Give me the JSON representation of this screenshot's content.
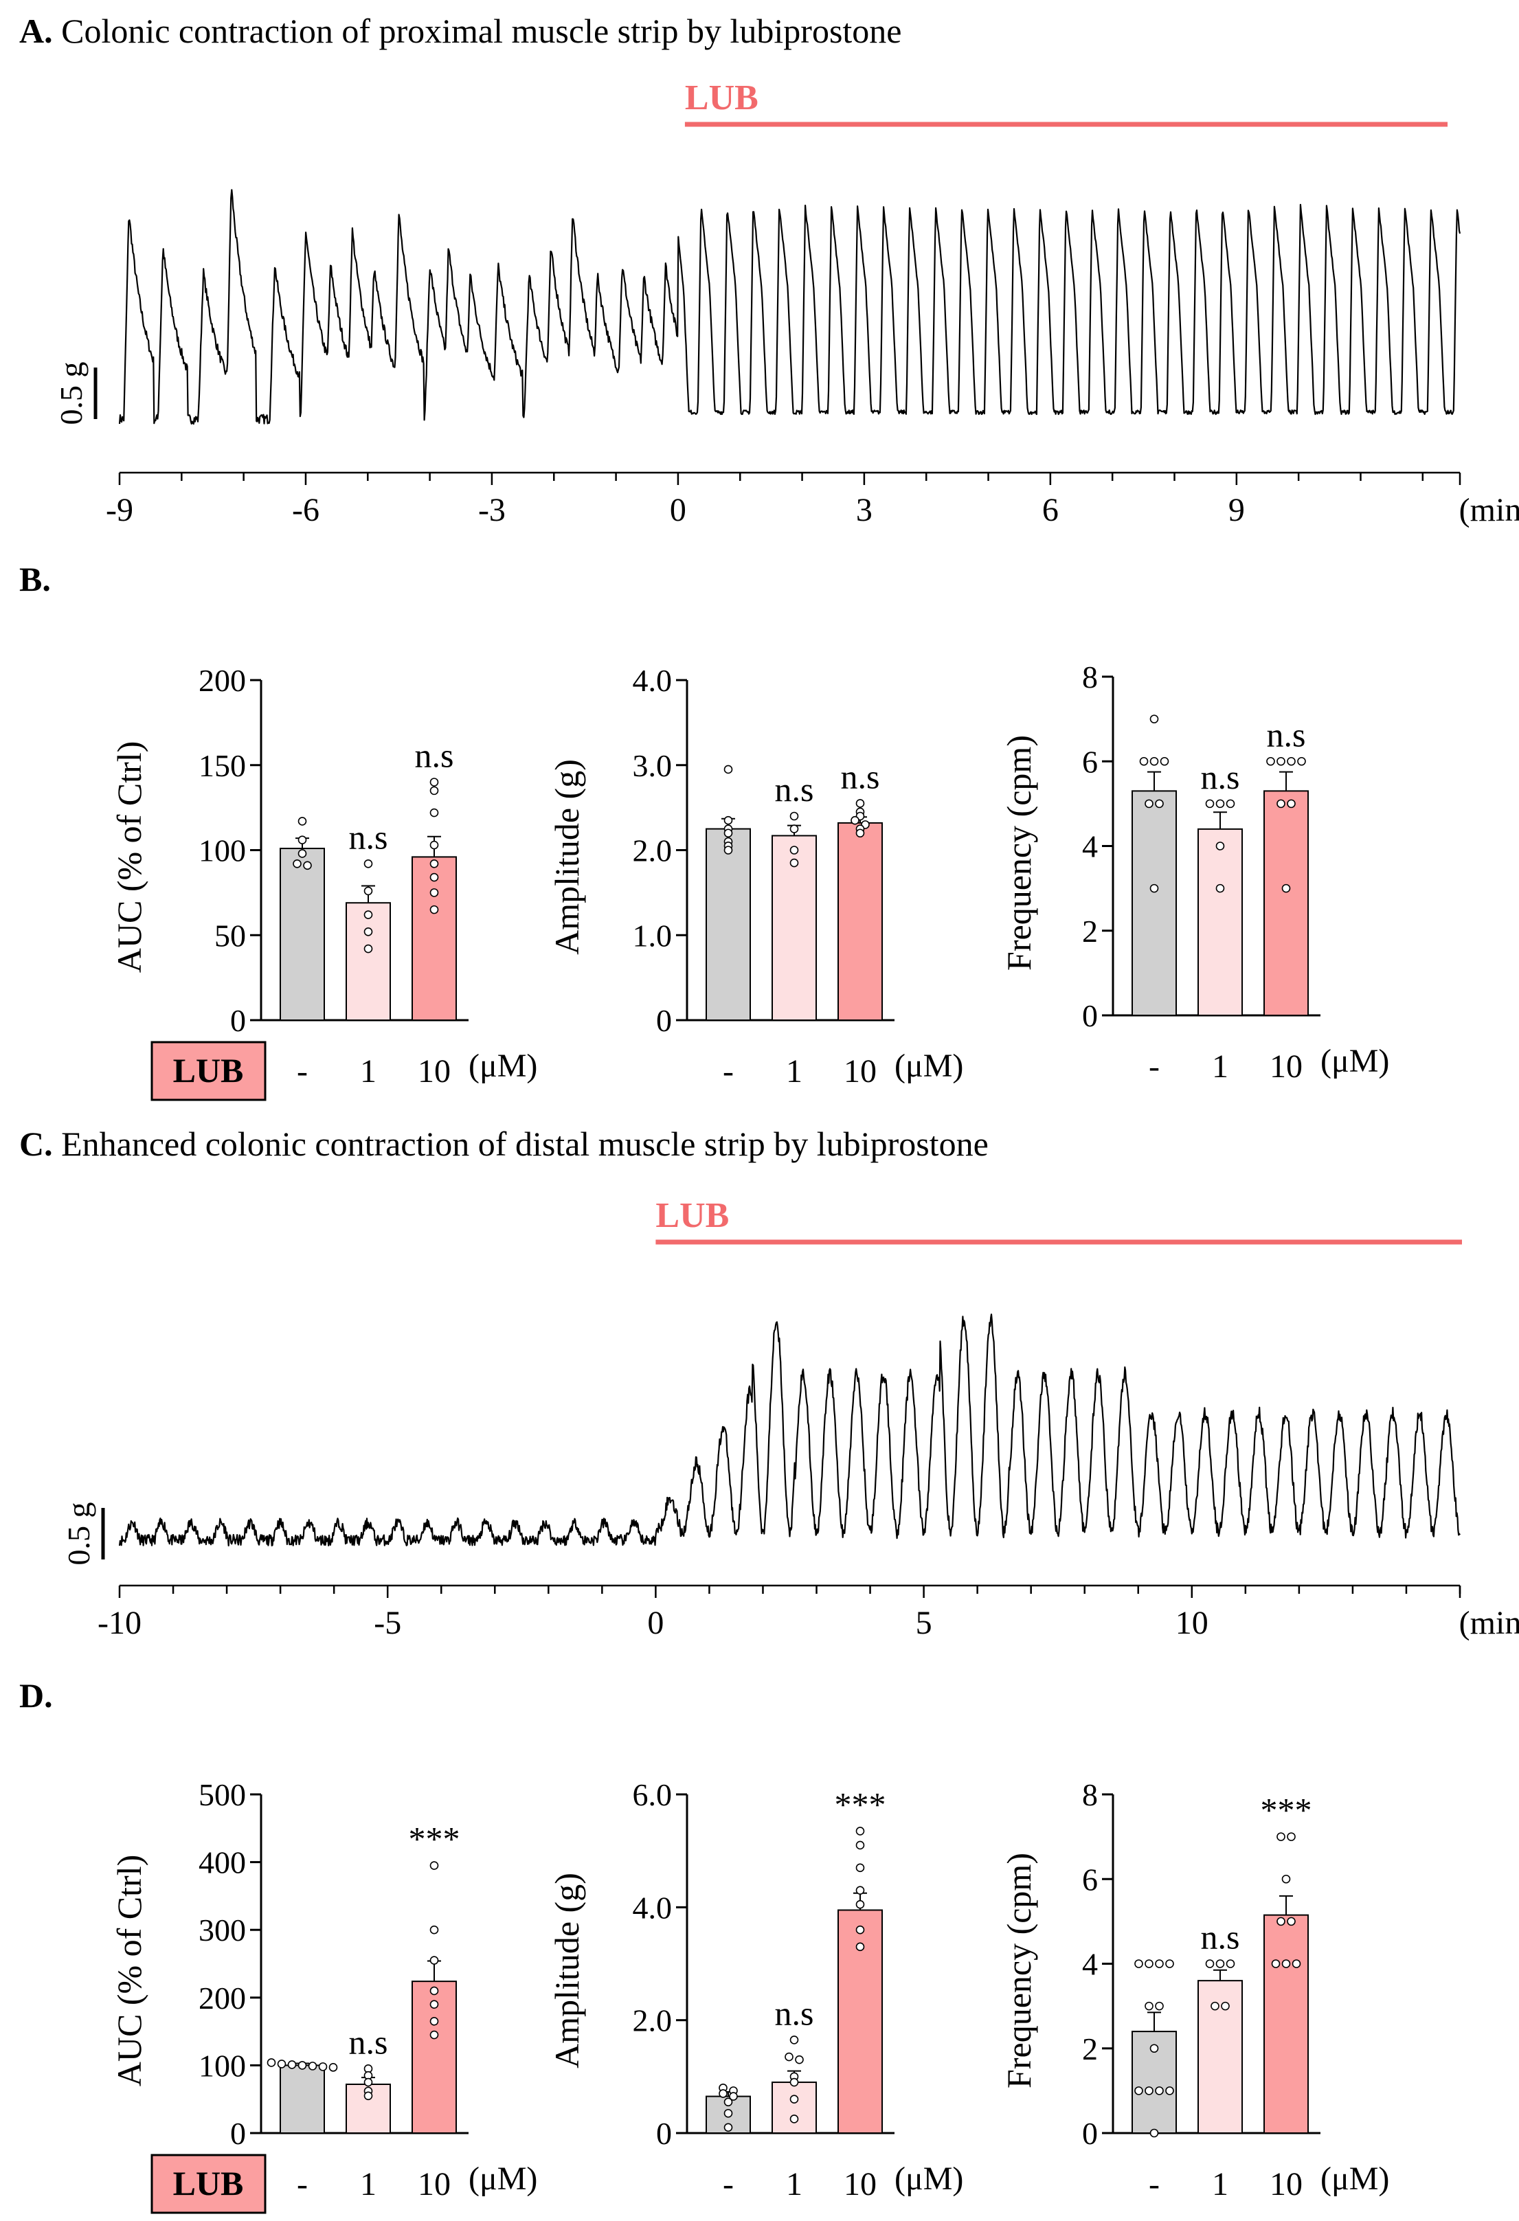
{
  "panels": {
    "a": {
      "letter": "A.",
      "title": "Colonic contraction of proximal muscle strip by lubiprostone"
    },
    "b": {
      "letter": "B."
    },
    "c": {
      "letter": "C.",
      "title": "Enhanced colonic contraction of distal muscle strip by lubiprostone"
    },
    "d": {
      "letter": "D."
    }
  },
  "colors": {
    "ctrl": "#d0d0d0",
    "lub1": "#fde0e1",
    "lub10": "#fb9fa0",
    "lub_line": "#f26a6c"
  },
  "chart_data": [
    {
      "id": "A-trace",
      "type": "line",
      "lub_label": "LUB",
      "scale_label": "0.5 g",
      "x_ticks": [
        "-9",
        "-6",
        "-3",
        "0",
        "3",
        "6",
        "9"
      ],
      "x_range": [
        -9,
        12.6
      ],
      "unit": "(min)",
      "lub_start": 0
    },
    {
      "id": "B-auc",
      "type": "bar",
      "ylabel": "AUC (% of Ctrl)",
      "ylim": [
        0,
        200
      ],
      "y_ticks": [
        "0",
        "50",
        "100",
        "150",
        "200"
      ],
      "categories": [
        "-",
        "1",
        "10"
      ],
      "unit": "(μM)",
      "lub_label": "LUB",
      "values": [
        101,
        69,
        96
      ],
      "errors": [
        6,
        10,
        12
      ],
      "significance": [
        "",
        "n.s",
        "n.s"
      ],
      "points": [
        [
          117,
          106,
          98,
          92,
          91
        ],
        [
          92,
          76,
          62,
          52,
          42
        ],
        [
          140,
          135,
          122,
          103,
          92,
          84,
          75,
          65
        ]
      ]
    },
    {
      "id": "B-amplitude",
      "type": "bar",
      "ylabel": "Amplitude (g)",
      "ylim": [
        0,
        4
      ],
      "y_ticks": [
        "0",
        "1.0",
        "2.0",
        "3.0",
        "4.0"
      ],
      "categories": [
        "-",
        "1",
        "10"
      ],
      "unit": "(μM)",
      "values": [
        2.25,
        2.17,
        2.32
      ],
      "errors": [
        0.12,
        0.12,
        0.07
      ],
      "significance": [
        "",
        "n.s",
        "n.s"
      ],
      "points": [
        [
          2.95,
          2.35,
          2.25,
          2.2,
          2.1,
          2.05,
          2.0
        ],
        [
          2.4,
          2.25,
          2.0,
          1.85
        ],
        [
          2.55,
          2.45,
          2.4,
          2.35,
          2.3,
          2.25,
          2.2
        ]
      ]
    },
    {
      "id": "B-frequency",
      "type": "bar",
      "ylabel": "Frequency (cpm)",
      "ylim": [
        0,
        8
      ],
      "y_ticks": [
        "0",
        "2",
        "4",
        "6",
        "8"
      ],
      "categories": [
        "-",
        "1",
        "10"
      ],
      "unit": "(μM)",
      "values": [
        5.3,
        4.4,
        5.3
      ],
      "errors": [
        0.45,
        0.4,
        0.45
      ],
      "significance": [
        "",
        "n.s",
        "n.s"
      ],
      "points": [
        [
          7,
          6,
          6,
          6,
          5,
          5,
          3
        ],
        [
          5,
          5,
          5,
          4,
          3
        ],
        [
          6,
          6,
          6,
          6,
          5,
          5,
          3
        ]
      ]
    },
    {
      "id": "C-trace",
      "type": "line",
      "lub_label": "LUB",
      "scale_label": "0.5 g",
      "x_ticks": [
        "-10",
        "-5",
        "0",
        "5",
        "10"
      ],
      "x_range": [
        -10,
        15
      ],
      "unit": "(min)",
      "lub_start": 0
    },
    {
      "id": "D-auc",
      "type": "bar",
      "ylabel": "AUC (% of Ctrl)",
      "ylim": [
        0,
        500
      ],
      "y_ticks": [
        "0",
        "100",
        "200",
        "300",
        "400",
        "500"
      ],
      "categories": [
        "-",
        "1",
        "10"
      ],
      "unit": "(μM)",
      "lub_label": "LUB",
      "values": [
        100,
        72,
        224
      ],
      "errors": [
        3,
        10,
        30
      ],
      "significance": [
        "",
        "n.s",
        "***"
      ],
      "points": [
        [
          104,
          102,
          101,
          100,
          99,
          98,
          97
        ],
        [
          95,
          85,
          75,
          62,
          55
        ],
        [
          395,
          300,
          255,
          210,
          190,
          165,
          145
        ]
      ]
    },
    {
      "id": "D-amplitude",
      "type": "bar",
      "ylabel": "Amplitude (g)",
      "ylim": [
        0,
        6
      ],
      "y_ticks": [
        "0",
        "2.0",
        "4.0",
        "6.0"
      ],
      "categories": [
        "-",
        "1",
        "10"
      ],
      "unit": "(μM)",
      "values": [
        0.65,
        0.9,
        3.95
      ],
      "errors": [
        0.08,
        0.2,
        0.3
      ],
      "significance": [
        "",
        "n.s",
        "***"
      ],
      "points": [
        [
          0.8,
          0.75,
          0.7,
          0.65,
          0.55,
          0.35,
          0.1
        ],
        [
          1.65,
          1.35,
          1.3,
          1.0,
          0.9,
          0.6,
          0.25
        ],
        [
          5.35,
          5.1,
          4.7,
          4.3,
          4.05,
          3.6,
          3.3
        ]
      ]
    },
    {
      "id": "D-frequency",
      "type": "bar",
      "ylabel": "Frequency (cpm)",
      "ylim": [
        0,
        8
      ],
      "y_ticks": [
        "0",
        "2",
        "4",
        "6",
        "8"
      ],
      "categories": [
        "-",
        "1",
        "10"
      ],
      "unit": "(μM)",
      "values": [
        2.4,
        3.6,
        5.15
      ],
      "errors": [
        0.45,
        0.25,
        0.45
      ],
      "significance": [
        "",
        "n.s",
        "***"
      ],
      "points": [
        [
          4,
          4,
          4,
          4,
          3,
          3,
          2,
          1,
          1,
          1,
          1,
          0
        ],
        [
          4,
          4,
          4,
          3,
          3
        ],
        [
          7,
          7,
          6,
          5,
          5,
          4,
          4,
          4
        ]
      ]
    }
  ]
}
